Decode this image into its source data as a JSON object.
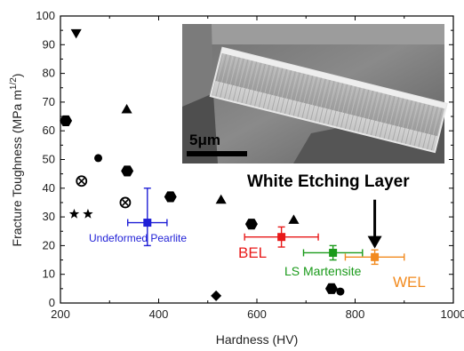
{
  "chart_data": {
    "type": "scatter",
    "xlabel": "Hardness (HV)",
    "ylabel": "Fracture Toughness (MPa m",
    "ylabel_sup": "1/2",
    "ylabel_close": ")",
    "xlim": [
      200,
      1000
    ],
    "ylim": [
      0,
      100
    ],
    "xticks": [
      "200",
      "400",
      "600",
      "800",
      "1000"
    ],
    "yticks": [
      "0",
      "10",
      "20",
      "30",
      "40",
      "50",
      "60",
      "70",
      "80",
      "90",
      "100"
    ],
    "inset": {
      "title": "White Etching Layer",
      "scale_bar": "5μm"
    },
    "black_points": [
      {
        "marker": "triangle-down",
        "x": 232,
        "y": 94
      },
      {
        "marker": "hexagon",
        "x": 211,
        "y": 63.5
      },
      {
        "marker": "circle",
        "x": 277,
        "y": 50.5
      },
      {
        "marker": "circle-x",
        "x": 243,
        "y": 42.5
      },
      {
        "marker": "star",
        "x": 228,
        "y": 31
      },
      {
        "marker": "star",
        "x": 256,
        "y": 31
      },
      {
        "marker": "triangle",
        "x": 335,
        "y": 67.5
      },
      {
        "marker": "hexagon",
        "x": 336,
        "y": 46
      },
      {
        "marker": "circle-x",
        "x": 332,
        "y": 35
      },
      {
        "marker": "hexagon",
        "x": 424,
        "y": 37
      },
      {
        "marker": "triangle",
        "x": 527,
        "y": 36
      },
      {
        "marker": "diamond",
        "x": 517,
        "y": 2.5
      },
      {
        "marker": "hexagon",
        "x": 589,
        "y": 27.5
      },
      {
        "marker": "triangle",
        "x": 675,
        "y": 29
      },
      {
        "marker": "hexagon",
        "x": 752,
        "y": 5
      },
      {
        "marker": "circle",
        "x": 770,
        "y": 4
      }
    ],
    "series": [
      {
        "name": "Undeformed Pearlite",
        "color": "#1f1fd6",
        "x": 377,
        "y": 28,
        "xerr": 40,
        "yerr_up": 12,
        "yerr_down": 8
      },
      {
        "name": "BEL",
        "color": "#e81919",
        "x": 650,
        "y": 23,
        "xerr": 75,
        "yerr_up": 3.5,
        "yerr_down": 3.5
      },
      {
        "name": "LS Martensite",
        "color": "#1a9a1a",
        "x": 755,
        "y": 17.5,
        "xerr": 60,
        "yerr_up": 2.5,
        "yerr_down": 2.5
      },
      {
        "name": "WEL",
        "color": "#f28a1e",
        "x": 840,
        "y": 16,
        "xerr": 60,
        "yerr_up": 2.5,
        "yerr_down": 2.5
      }
    ],
    "arrow": {
      "x": 840,
      "y_from": 36,
      "y_to": 19
    }
  }
}
